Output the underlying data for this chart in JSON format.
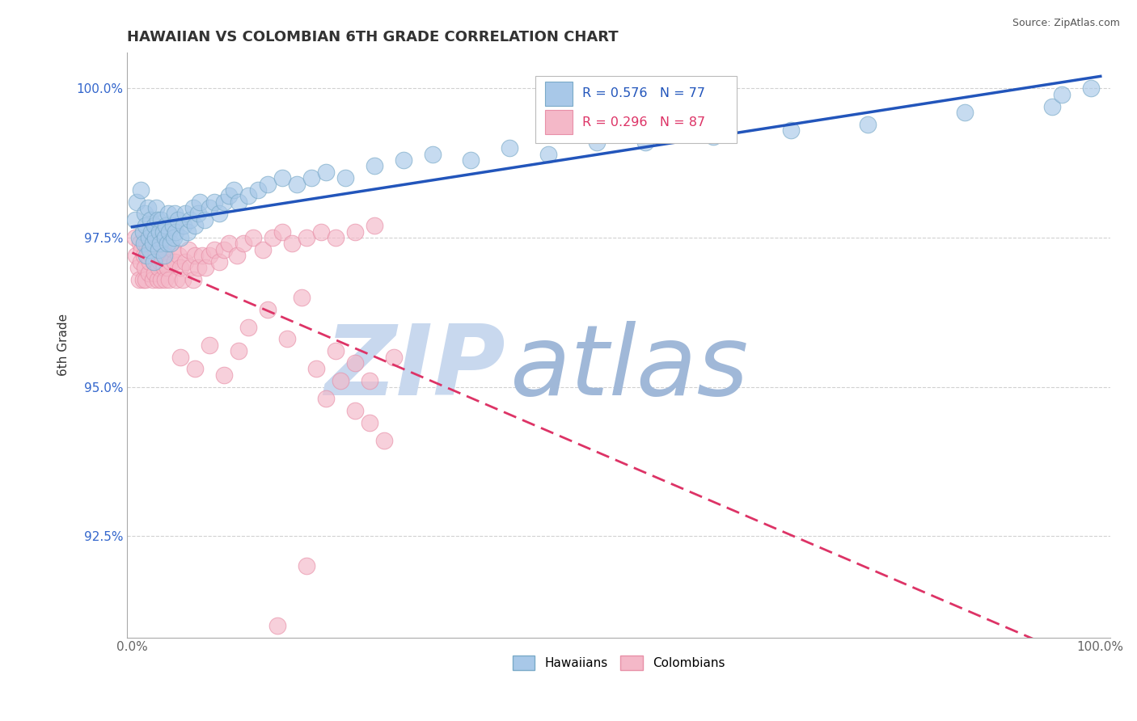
{
  "title": "HAWAIIAN VS COLOMBIAN 6TH GRADE CORRELATION CHART",
  "source_text": "Source: ZipAtlas.com",
  "ylabel": "6th Grade",
  "xlim": [
    -0.005,
    1.01
  ],
  "ylim": [
    0.908,
    1.006
  ],
  "yticks": [
    0.925,
    0.95,
    0.975,
    1.0
  ],
  "ytick_labels": [
    "92.5%",
    "95.0%",
    "97.5%",
    "100.0%"
  ],
  "xticks": [
    0.0,
    1.0
  ],
  "xtick_labels": [
    "0.0%",
    "100.0%"
  ],
  "hawaiian_color": "#a8c8e8",
  "colombian_color": "#f4b8c8",
  "hawaiian_edge_color": "#7aaac8",
  "colombian_edge_color": "#e890a8",
  "hawaiian_line_color": "#2255bb",
  "colombian_line_color": "#dd3366",
  "legend_R_hawaiian": "R = 0.576",
  "legend_N_hawaiian": "N = 77",
  "legend_R_colombian": "R = 0.296",
  "legend_N_colombian": "N = 87",
  "legend_label_hawaiian": "Hawaiians",
  "legend_label_colombian": "Colombians",
  "watermark_zip": "ZIP",
  "watermark_atlas": "atlas",
  "watermark_color_zip": "#c8d8ee",
  "watermark_color_atlas": "#a0b8d8",
  "grid_color": "#cccccc",
  "background_color": "#ffffff",
  "title_color": "#333333",
  "source_color": "#555555",
  "ytick_color": "#3366cc",
  "xtick_color": "#666666",
  "ylabel_color": "#333333"
}
